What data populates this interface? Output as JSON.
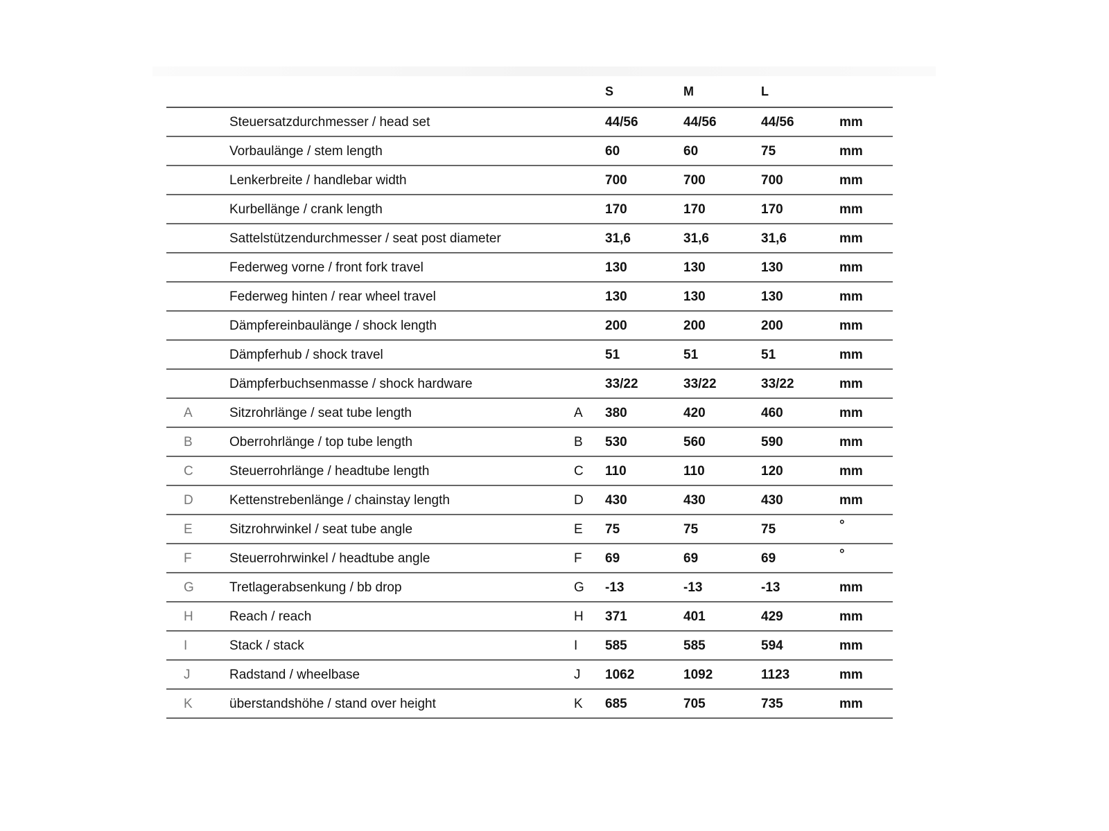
{
  "columns": {
    "s": "S",
    "m": "M",
    "l": "L"
  },
  "rows": [
    {
      "letter": "",
      "label": "Steuersatzdurchmesser / head set",
      "ref": "",
      "s": "44/56",
      "m": "44/56",
      "l": "44/56",
      "unit": "mm"
    },
    {
      "letter": "",
      "label": "Vorbaulänge / stem length",
      "ref": "",
      "s": "60",
      "m": "60",
      "l": "75",
      "unit": "mm"
    },
    {
      "letter": "",
      "label": "Lenkerbreite / handlebar width",
      "ref": "",
      "s": "700",
      "m": "700",
      "l": "700",
      "unit": "mm"
    },
    {
      "letter": "",
      "label": "Kurbellänge / crank length",
      "ref": "",
      "s": "170",
      "m": "170",
      "l": "170",
      "unit": "mm"
    },
    {
      "letter": "",
      "label": "Sattelstützendurchmesser / seat post diameter",
      "ref": "",
      "s": "31,6",
      "m": "31,6",
      "l": "31,6",
      "unit": "mm"
    },
    {
      "letter": "",
      "label": "Federweg vorne / front fork travel",
      "ref": "",
      "s": "130",
      "m": "130",
      "l": "130",
      "unit": "mm"
    },
    {
      "letter": "",
      "label": "Federweg hinten / rear wheel travel",
      "ref": "",
      "s": "130",
      "m": "130",
      "l": "130",
      "unit": "mm"
    },
    {
      "letter": "",
      "label": "Dämpfereinbaulänge / shock length",
      "ref": "",
      "s": "200",
      "m": "200",
      "l": "200",
      "unit": "mm"
    },
    {
      "letter": "",
      "label": "Dämpferhub / shock travel",
      "ref": "",
      "s": "51",
      "m": "51",
      "l": "51",
      "unit": "mm"
    },
    {
      "letter": "",
      "label": "Dämpferbuchsenmasse / shock hardware",
      "ref": "",
      "s": "33/22",
      "m": "33/22",
      "l": "33/22",
      "unit": "mm"
    },
    {
      "letter": "A",
      "label": "Sitzrohrlänge / seat tube length",
      "ref": "A",
      "s": "380",
      "m": "420",
      "l": "460",
      "unit": "mm"
    },
    {
      "letter": "B",
      "label": "Oberrohrlänge / top tube length",
      "ref": "B",
      "s": "530",
      "m": "560",
      "l": "590",
      "unit": "mm"
    },
    {
      "letter": "C",
      "label": "Steuerrohrlänge / headtube length",
      "ref": "C",
      "s": "110",
      "m": "110",
      "l": "120",
      "unit": "mm"
    },
    {
      "letter": "D",
      "label": "Kettenstrebenlänge / chainstay length",
      "ref": "D",
      "s": "430",
      "m": "430",
      "l": "430",
      "unit": "mm"
    },
    {
      "letter": "E",
      "label": "Sitzrohrwinkel / seat tube angle",
      "ref": "E",
      "s": "75",
      "m": "75",
      "l": "75",
      "unit": "°"
    },
    {
      "letter": "F",
      "label": "Steuerrohrwinkel / headtube angle",
      "ref": "F",
      "s": "69",
      "m": "69",
      "l": "69",
      "unit": "°"
    },
    {
      "letter": "G",
      "label": "Tretlagerabsenkung / bb drop",
      "ref": "G",
      "s": "-13",
      "m": "-13",
      "l": "-13",
      "unit": "mm"
    },
    {
      "letter": "H",
      "label": "Reach / reach",
      "ref": "H",
      "s": "371",
      "m": "401",
      "l": "429",
      "unit": "mm"
    },
    {
      "letter": "I",
      "label": "Stack / stack",
      "ref": "I",
      "s": "585",
      "m": "585",
      "l": "594",
      "unit": "mm"
    },
    {
      "letter": "J",
      "label": "Radstand / wheelbase",
      "ref": "J",
      "s": "1062",
      "m": "1092",
      "l": "1123",
      "unit": "mm"
    },
    {
      "letter": "K",
      "label": "überstandshöhe / stand over height",
      "ref": "K",
      "s": "685",
      "m": "705",
      "l": "735",
      "unit": "mm"
    }
  ]
}
